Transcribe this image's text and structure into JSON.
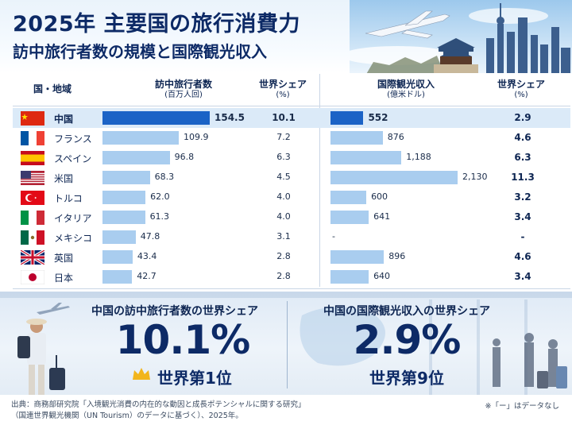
{
  "header": {
    "title": "2025年 主要国の旅行消費力",
    "subtitle": "訪中旅行者数の規模と国際観光収入"
  },
  "table_headers": {
    "country": "国・地域",
    "visitors": "訪中旅行者数",
    "visitors_unit": "(百万人回)",
    "share1": "世界シェア",
    "share1_unit": "(%)",
    "receipts": "国際観光収入",
    "receipts_unit": "(億米ドル)",
    "share2": "世界シェア",
    "share2_unit": "(%)"
  },
  "chart_data": {
    "type": "bar",
    "categories": [
      "中国",
      "フランス",
      "スペイン",
      "米国",
      "トルコ",
      "イタリア",
      "メキシコ",
      "英国",
      "日本"
    ],
    "flags": [
      "cn",
      "fr",
      "es",
      "us",
      "tr",
      "it",
      "mx",
      "gb",
      "jp"
    ],
    "visitors_labels": [
      "154.5",
      "109.9",
      "96.8",
      "68.3",
      "62.0",
      "61.3",
      "47.8",
      "43.4",
      "42.7"
    ],
    "visitors_values": [
      154.5,
      109.9,
      96.8,
      68.3,
      62.0,
      61.3,
      47.8,
      43.4,
      42.7
    ],
    "visitors_share": [
      "10.1",
      "7.2",
      "6.3",
      "4.5",
      "4.0",
      "4.0",
      "3.1",
      "2.8",
      "2.8"
    ],
    "receipts_labels": [
      "552",
      "876",
      "1,188",
      "2,130",
      "600",
      "641",
      "-",
      "896",
      "640"
    ],
    "receipts_values": [
      552,
      876,
      1188,
      2130,
      600,
      641,
      null,
      896,
      640
    ],
    "receipts_share": [
      "2.9",
      "4.6",
      "6.3",
      "11.3",
      "3.2",
      "3.4",
      "-",
      "4.6",
      "3.4"
    ],
    "highlight_index": 0,
    "colors": {
      "highlight": "#1b63c6",
      "normal": "#a9cdef"
    }
  },
  "summary": {
    "left_title": "中国の訪中旅行者数の世界シェア",
    "left_value": "10.1%",
    "left_rank": "世界第1位",
    "right_title": "中国の国際観光収入の世界シェア",
    "right_value": "2.9%",
    "right_rank": "世界第9位",
    "crown_color": "#f2b51c"
  },
  "footer": {
    "source_line1": "出典：商務部研究院「入境観光消費の内在的な動因と成長ポテンシャルに関する研究」",
    "source_line2": "（国連世界観光機関（UN Tourism）のデータに基づく）、2025年。",
    "note": "※「ー」はデータなし"
  }
}
